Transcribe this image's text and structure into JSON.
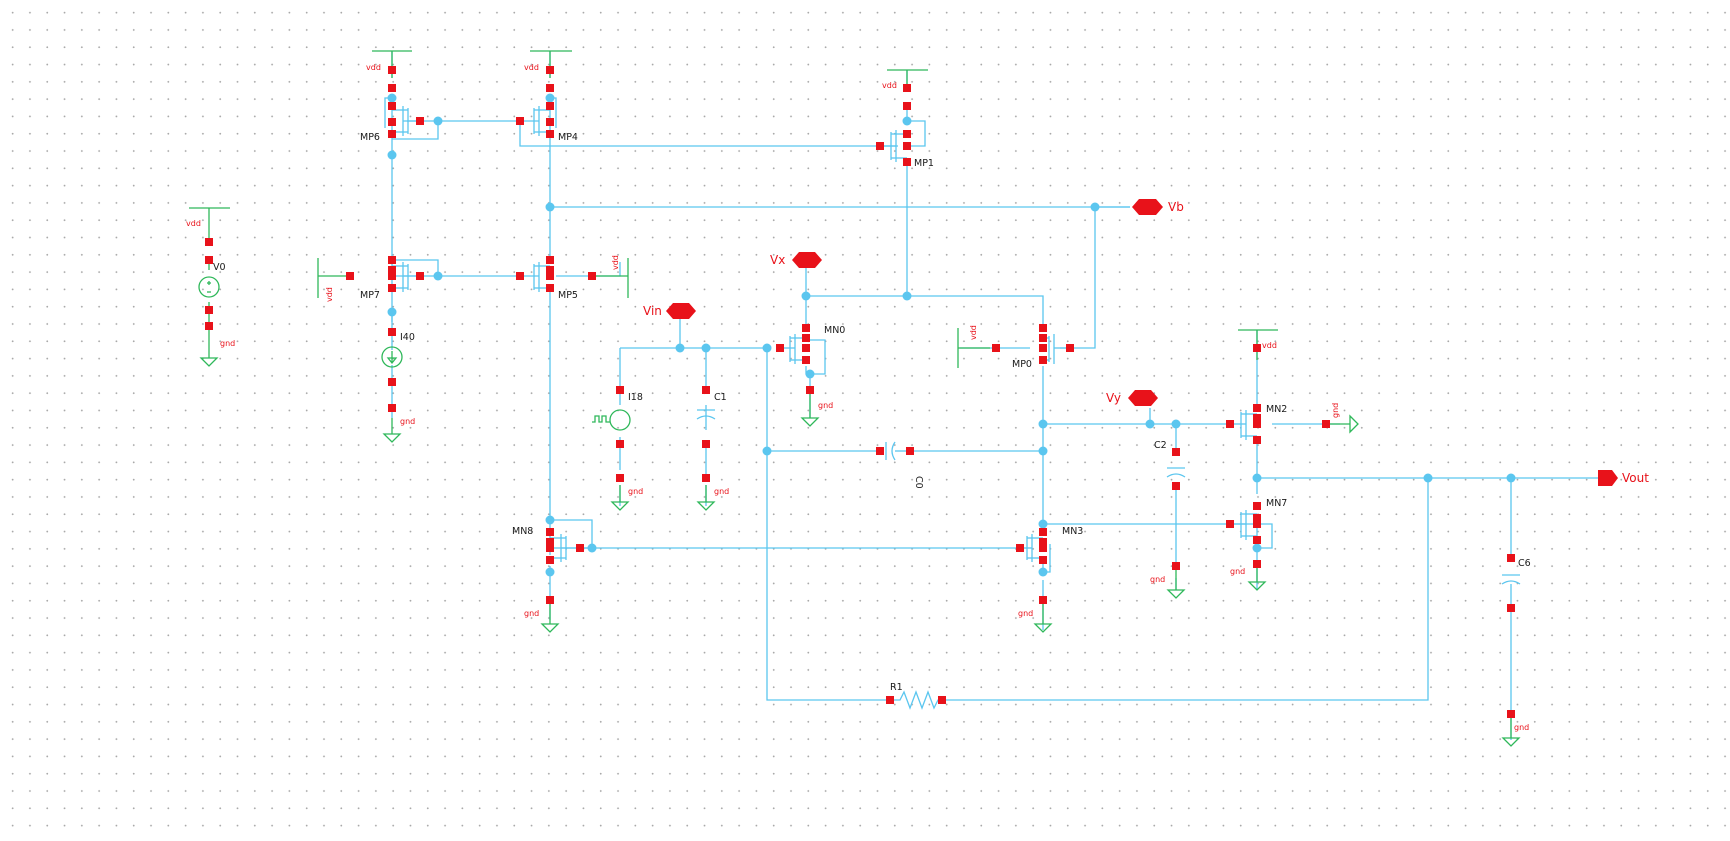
{
  "schematic": {
    "ports": {
      "vb": "Vb",
      "vx": "Vx",
      "vin": "Vin",
      "vy": "Vy",
      "vout": "Vout"
    },
    "devices": {
      "mp6": "MP6",
      "mp4": "MP4",
      "mp1": "MP1",
      "mp7": "MP7",
      "mp5": "MP5",
      "mn0": "MN0",
      "mp0": "MP0",
      "mn2": "MN2",
      "mn7": "MN7",
      "mn8": "MN8",
      "mn3": "MN3",
      "v0": "V0",
      "i40": "I40",
      "i18": "I18",
      "c1": "C1",
      "c0": "C0",
      "c2": "C2",
      "c6": "C6",
      "r1": "R1"
    },
    "nets": {
      "vdd": "vdd",
      "gnd": "gnd"
    }
  }
}
